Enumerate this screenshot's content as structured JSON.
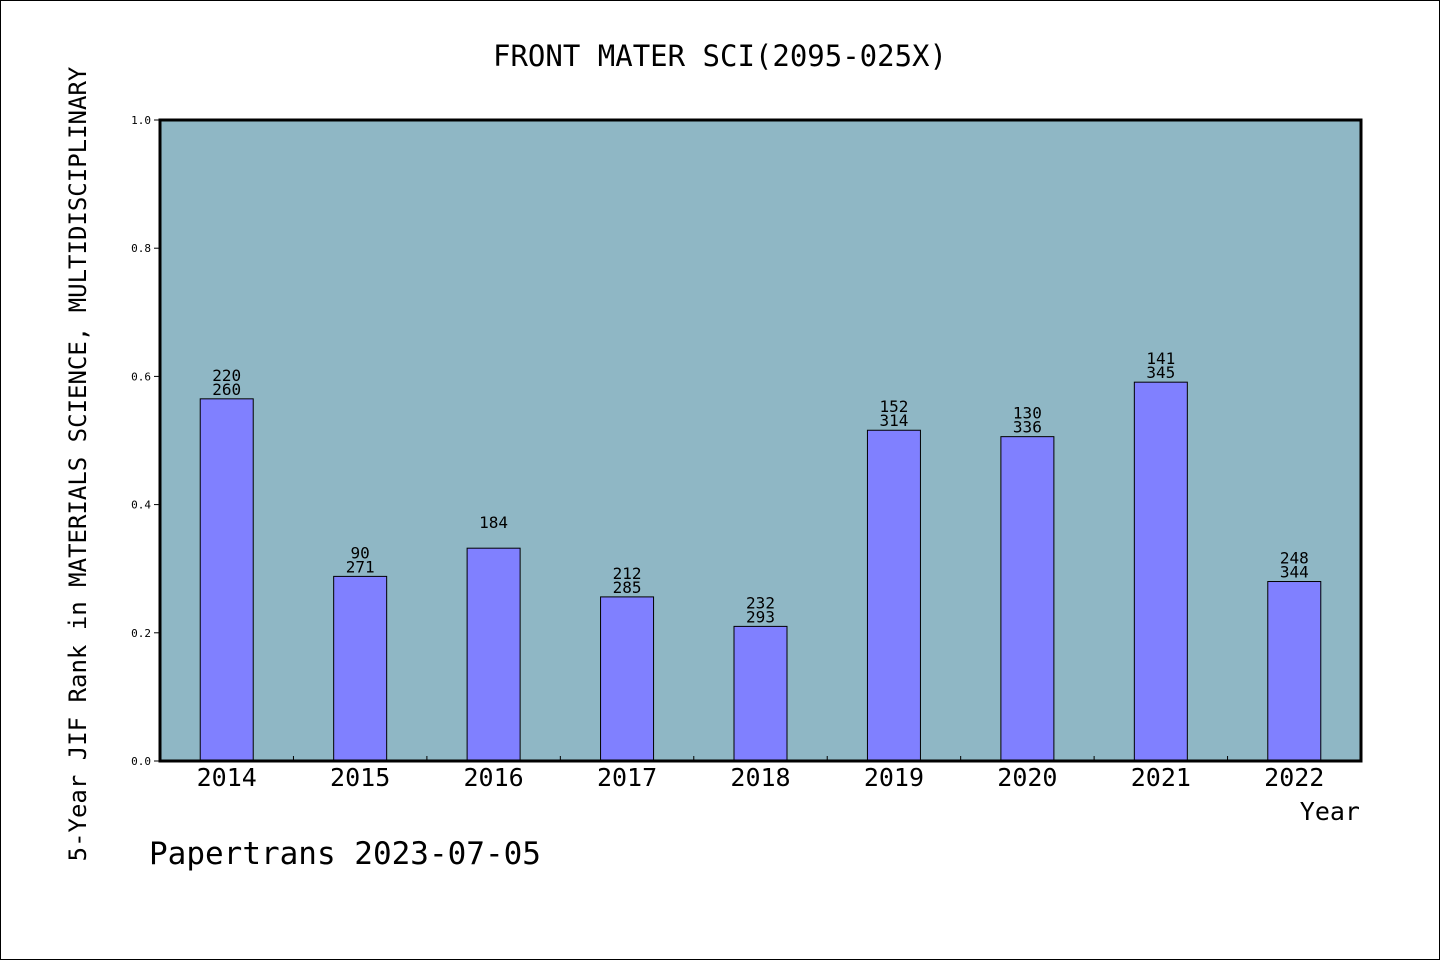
{
  "chart_data": {
    "type": "bar",
    "title": "FRONT MATER SCI(2095-025X)",
    "xlabel": "Year",
    "ylabel": "5-Year JIF Rank in MATERIALS SCIENCE, MULTIDISCIPLINARY",
    "ylim": [
      0,
      1.0
    ],
    "yticks": [
      "0.0",
      "0.2",
      "0.4",
      "0.6",
      "0.8",
      "1.0"
    ],
    "categories": [
      "2014",
      "2015",
      "2016",
      "2017",
      "2018",
      "2019",
      "2020",
      "2021",
      "2022"
    ],
    "values": [
      0.565,
      0.288,
      0.332,
      0.256,
      0.21,
      0.516,
      0.506,
      0.591,
      0.28
    ],
    "bar_labels": [
      [
        "220",
        "260"
      ],
      [
        "90",
        "271"
      ],
      [
        "184"
      ],
      [
        "212",
        "285"
      ],
      [
        "232",
        "293"
      ],
      [
        "152",
        "314"
      ],
      [
        "130",
        "336"
      ],
      [
        "141",
        "345"
      ],
      [
        "248",
        "344"
      ]
    ],
    "grid": false,
    "colors": {
      "plot_background": "#8fb7c5",
      "bar_fill": "#8080ff",
      "bar_stroke": "#000000"
    }
  },
  "footer": {
    "credit": "Papertrans 2023-07-05"
  }
}
